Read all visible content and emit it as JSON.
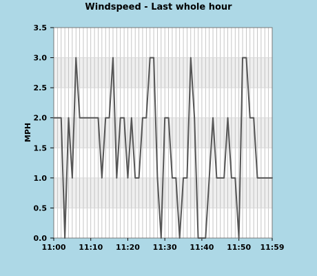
{
  "chart_data": {
    "type": "line",
    "title": "Windspeed - Last whole hour",
    "xlabel": "",
    "ylabel": "MPH",
    "ylim": [
      0,
      3.5
    ],
    "grid": true,
    "x_range_minutes": [
      0,
      59
    ],
    "x_tick_minutes": [
      0,
      10,
      20,
      30,
      40,
      50,
      59
    ],
    "x_tick_labels": [
      "11:00",
      "11:10",
      "11:20",
      "11:30",
      "11:40",
      "11:50",
      "11:59"
    ],
    "y_ticks": [
      0.0,
      0.5,
      1.0,
      1.5,
      2.0,
      2.5,
      3.0,
      3.5
    ],
    "y_tick_labels": [
      "0.0",
      "0.5",
      "1.0",
      "1.5",
      "2.0",
      "2.5",
      "3.0",
      "3.5"
    ],
    "band_fill_color": "#efefef",
    "plot_bg_color": "#ffffff",
    "line_color": "#555555",
    "series": [
      {
        "x": [
          0,
          2,
          3,
          4,
          5,
          6,
          7,
          8,
          9,
          10,
          11,
          12,
          13,
          14,
          15,
          16,
          17,
          18,
          19,
          20,
          21,
          22,
          23,
          24,
          25,
          26,
          27,
          28,
          29,
          30,
          31,
          32,
          33,
          34,
          35,
          36,
          37,
          38,
          39,
          40,
          41,
          42,
          43,
          44,
          45,
          46,
          47,
          48,
          49,
          50,
          51,
          52,
          53,
          54,
          55,
          56,
          57,
          58,
          59
        ],
        "y": [
          2.0,
          2.0,
          0.0,
          2.0,
          1.0,
          3.0,
          2.0,
          2.0,
          2.0,
          2.0,
          2.0,
          2.0,
          1.0,
          2.0,
          2.0,
          3.0,
          1.0,
          2.0,
          2.0,
          1.0,
          2.0,
          1.0,
          1.0,
          2.0,
          2.0,
          3.0,
          3.0,
          1.0,
          0.0,
          2.0,
          2.0,
          1.0,
          1.0,
          0.0,
          1.0,
          1.0,
          3.0,
          2.0,
          0.0,
          0.0,
          0.0,
          1.0,
          2.0,
          1.0,
          1.0,
          1.0,
          2.0,
          1.0,
          1.0,
          0.0,
          3.0,
          3.0,
          2.0,
          2.0,
          1.0,
          1.0,
          1.0,
          1.0,
          1.0
        ]
      }
    ]
  }
}
